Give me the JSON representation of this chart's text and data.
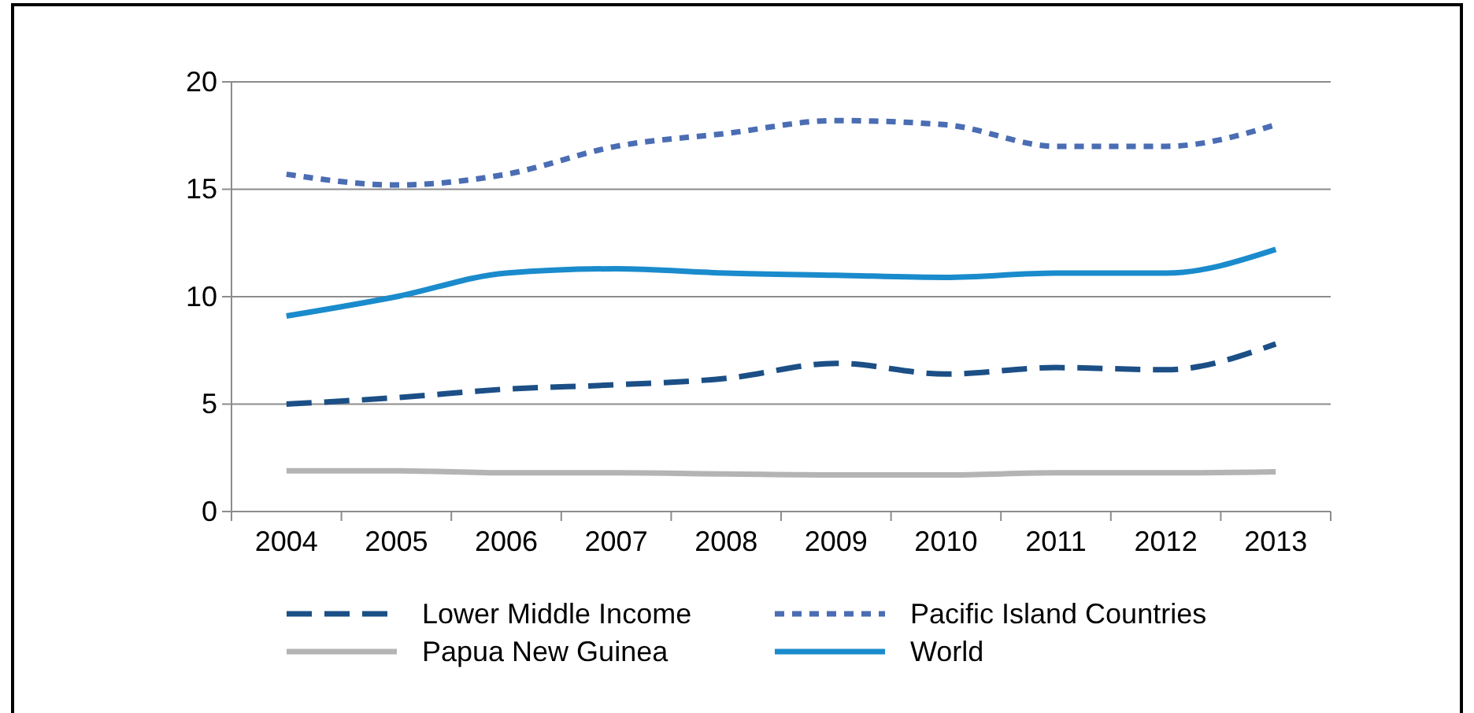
{
  "chart_data": {
    "type": "line",
    "categories": [
      "2004",
      "2005",
      "2006",
      "2007",
      "2008",
      "2009",
      "2010",
      "2011",
      "2012",
      "2013"
    ],
    "series": [
      {
        "name": "Lower Middle Income",
        "color": "#1b4f86",
        "line_style": "dashed",
        "values": [
          5.0,
          5.3,
          5.7,
          5.9,
          6.2,
          6.9,
          6.4,
          6.7,
          6.6,
          7.8
        ]
      },
      {
        "name": "Pacific Island Countries",
        "color": "#4a6db3",
        "line_style": "dotted",
        "values": [
          15.7,
          15.2,
          15.7,
          17.0,
          17.6,
          18.2,
          18.0,
          17.0,
          17.0,
          18.0
        ]
      },
      {
        "name": "Papua New Guinea",
        "color": "#b4b4b4",
        "line_style": "solid",
        "values": [
          1.9,
          1.9,
          1.8,
          1.8,
          1.75,
          1.7,
          1.7,
          1.8,
          1.8,
          1.85
        ]
      },
      {
        "name": "World",
        "color": "#1a8bcc",
        "line_style": "solid",
        "values": [
          9.1,
          10.0,
          11.1,
          11.3,
          11.1,
          11.0,
          10.9,
          11.1,
          11.1,
          12.2
        ]
      }
    ],
    "ylim": [
      0,
      20
    ],
    "yticks": [
      0,
      5,
      10,
      15,
      20
    ],
    "grid": "y",
    "legend": "bottom",
    "marker": "none"
  }
}
